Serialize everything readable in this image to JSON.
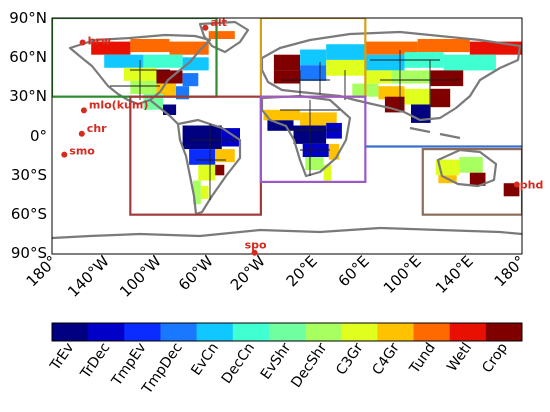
{
  "map": {
    "lat_ticks": [
      "90°N",
      "60°N",
      "30°N",
      "0°",
      "30°S",
      "60°S",
      "90°S"
    ],
    "lon_ticks": [
      "180°",
      "140°W",
      "100°W",
      "60°W",
      "20°W",
      "20°E",
      "60°E",
      "100°E",
      "140°E",
      "180°"
    ],
    "sites": [
      {
        "name": "brw",
        "lon": -156.6,
        "lat": 71.3
      },
      {
        "name": "alt",
        "lon": -62.5,
        "lat": 82.5
      },
      {
        "name": "mlo(kum)",
        "lon": -155.6,
        "lat": 19.5
      },
      {
        "name": "chr",
        "lon": -157.2,
        "lat": 1.7
      },
      {
        "name": "smo",
        "lon": -170.6,
        "lat": -14.2
      },
      {
        "name": "phd",
        "lon": 176.0,
        "lat": -37.0
      },
      {
        "name": "spo",
        "lon": -24.8,
        "lat": -89.0
      }
    ],
    "region_boxes": [
      {
        "region": "north-america",
        "color": "#2e8b2e",
        "lon": [
          -180,
          -54
        ],
        "lat": [
          30,
          90
        ]
      },
      {
        "region": "europe",
        "color": "#d4a017",
        "lon": [
          -20,
          60
        ],
        "lat": [
          30,
          90
        ]
      },
      {
        "region": "south-america",
        "color": "#a33a3a",
        "lon": [
          -120,
          -20
        ],
        "lat": [
          -60,
          30
        ]
      },
      {
        "region": "africa",
        "color": "#9b59c8",
        "lon": [
          -20,
          60
        ],
        "lat": [
          -35,
          30
        ]
      },
      {
        "region": "tropical-asia",
        "color": "#3a6fd0",
        "lon": [
          60,
          180
        ],
        "lat": [
          -10,
          -8
        ]
      },
      {
        "region": "australia",
        "color": "#8b6b5a",
        "lon": [
          104,
          180
        ],
        "lat": [
          -60,
          -10
        ]
      }
    ]
  },
  "colorbar": {
    "categories": [
      "TrEv",
      "TrDec",
      "TmpEv",
      "TmpDec",
      "EvCn",
      "DecCn",
      "EvShr",
      "DecShr",
      "C3Gr",
      "C4Gr",
      "Tund",
      "Wetl",
      "Crop"
    ],
    "colors": [
      "#000080",
      "#0000c8",
      "#0a2cff",
      "#1a78ff",
      "#10c8ff",
      "#40ffd0",
      "#70ffa0",
      "#a8ff60",
      "#e0ff1e",
      "#ffc200",
      "#ff6a00",
      "#e81000",
      "#800000"
    ]
  }
}
